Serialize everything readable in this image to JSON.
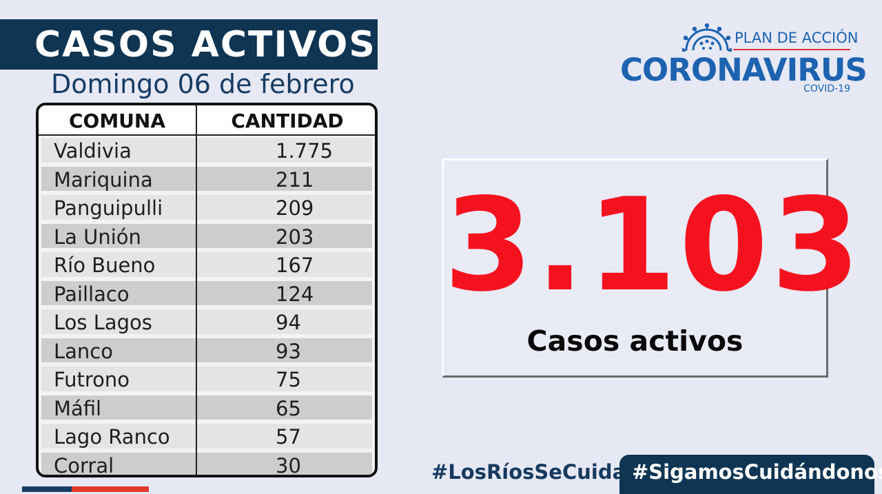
{
  "header": {
    "title": "CASOS ACTIVOS",
    "date": "Domingo 06 de febrero"
  },
  "table": {
    "columns": [
      "COMUNA",
      "CANTIDAD"
    ],
    "rows": [
      {
        "comuna": "Valdivia",
        "cantidad": "1.775"
      },
      {
        "comuna": "Mariquina",
        "cantidad": "211"
      },
      {
        "comuna": "Panguipulli",
        "cantidad": "209"
      },
      {
        "comuna": "La Unión",
        "cantidad": "203"
      },
      {
        "comuna": "Río Bueno",
        "cantidad": "167"
      },
      {
        "comuna": "Paillaco",
        "cantidad": "124"
      },
      {
        "comuna": "Los Lagos",
        "cantidad": "94"
      },
      {
        "comuna": "Lanco",
        "cantidad": "93"
      },
      {
        "comuna": "Futrono",
        "cantidad": "75"
      },
      {
        "comuna": "Máfil",
        "cantidad": "65"
      },
      {
        "comuna": "Lago Ranco",
        "cantidad": "57"
      },
      {
        "comuna": "Corral",
        "cantidad": "30"
      }
    ]
  },
  "logo": {
    "plan": "PLAN DE ACCIÓN",
    "name": "CORONAVIRUS",
    "sub": "COVID-19"
  },
  "total": {
    "number": "3.103",
    "label": "Casos activos"
  },
  "hashtags": {
    "regional": "#LosRíosSeCuida",
    "national": "#SigamosCuidándonos"
  },
  "colors": {
    "navy": "#0f3553",
    "red": "#f5121f",
    "logo_blue": "#1d63b0",
    "background": "#e6e8f4"
  }
}
